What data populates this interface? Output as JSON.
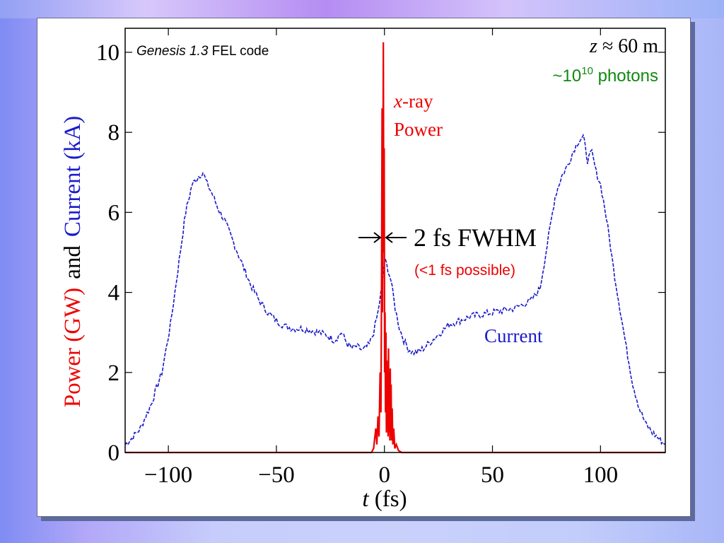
{
  "chart_data": {
    "type": "line",
    "title": "",
    "code_label_italic": "Genesis 1.3",
    "code_label_rest": " FEL code",
    "z_label_var": "z",
    "z_label_rest": " ≈ 60 m",
    "photons_prefix": "~10",
    "photons_exp": "10",
    "photons_suffix": " photons",
    "ylabel_power": "Power (GW)",
    "ylabel_and": "and",
    "ylabel_current": "Current (kA)",
    "xlabel_var": "t",
    "xlabel_unit": " (fs)",
    "xlim": [
      -120,
      130
    ],
    "ylim": [
      0,
      10.6
    ],
    "x_ticks": [
      -100,
      -50,
      0,
      50,
      100
    ],
    "x_tick_labels": [
      "−100",
      "−50",
      "0",
      "50",
      "100"
    ],
    "y_ticks": [
      0,
      2,
      4,
      6,
      8,
      10
    ],
    "y_tick_labels": [
      "0",
      "2",
      "4",
      "6",
      "8",
      "10"
    ],
    "grid": false,
    "series": [
      {
        "name": "Current",
        "color": "#1a1acc",
        "style": "dashed",
        "x": [
          -120,
          -117,
          -113,
          -108,
          -103,
          -99,
          -95,
          -92,
          -89,
          -86,
          -84,
          -82,
          -80,
          -77,
          -74,
          -71,
          -68,
          -65,
          -62,
          -58,
          -54,
          -50,
          -46,
          -42,
          -38,
          -34,
          -30,
          -26,
          -23,
          -20,
          -17,
          -15,
          -13,
          -10,
          -7,
          -5,
          -3,
          -1,
          0,
          1,
          3,
          5,
          7,
          9,
          11,
          13,
          15,
          18,
          22,
          26,
          30,
          35,
          40,
          45,
          50,
          55,
          60,
          64,
          68,
          72,
          76,
          79,
          82,
          85,
          88,
          90,
          92,
          93,
          94,
          96,
          98,
          100,
          102,
          104,
          106,
          109,
          112,
          115,
          118,
          121,
          124,
          127,
          130
        ],
        "values": [
          0.2,
          0.35,
          0.6,
          1.2,
          2.0,
          3.2,
          4.8,
          6.0,
          6.7,
          6.9,
          7.0,
          6.7,
          6.5,
          6.1,
          5.8,
          5.4,
          5.0,
          4.6,
          4.2,
          3.8,
          3.5,
          3.3,
          3.15,
          3.1,
          3.1,
          3.05,
          3.0,
          2.9,
          2.8,
          3.0,
          2.7,
          2.6,
          2.65,
          2.55,
          2.7,
          3.0,
          3.5,
          4.2,
          4.8,
          4.7,
          4.3,
          3.6,
          3.1,
          2.8,
          2.6,
          2.5,
          2.5,
          2.6,
          2.8,
          3.0,
          3.2,
          3.3,
          3.4,
          3.45,
          3.5,
          3.55,
          3.6,
          3.7,
          3.8,
          4.1,
          5.4,
          6.4,
          6.9,
          7.2,
          7.6,
          7.8,
          7.9,
          7.6,
          7.3,
          7.5,
          7.0,
          6.7,
          6.1,
          5.4,
          4.6,
          3.6,
          2.6,
          1.7,
          1.1,
          0.7,
          0.5,
          0.35,
          0.2
        ]
      },
      {
        "name": "x-ray Power",
        "color": "#ee0000",
        "style": "solid",
        "x": [
          -120,
          -6,
          -5,
          -4,
          -3.5,
          -3,
          -2.5,
          -2,
          -1.6,
          -1.3,
          -1.1,
          -0.9,
          -0.7,
          -0.5,
          -0.3,
          -0.1,
          0.1,
          0.3,
          0.5,
          0.7,
          0.9,
          1.1,
          1.3,
          1.5,
          1.7,
          1.9,
          2.1,
          2.3,
          2.5,
          2.7,
          2.9,
          3.1,
          3.3,
          3.6,
          3.9,
          4.3,
          4.8,
          5.5,
          6.5,
          8,
          130
        ],
        "values": [
          0,
          0,
          0.1,
          0.6,
          0.2,
          0.9,
          0.4,
          2.0,
          1.0,
          4.5,
          8.6,
          3.5,
          6.9,
          10.25,
          5.0,
          7.6,
          2.0,
          3.5,
          1.0,
          3.0,
          0.5,
          2.3,
          0.6,
          2.1,
          0.4,
          2.6,
          0.5,
          2.0,
          0.3,
          2.1,
          0.4,
          1.7,
          0.3,
          1.1,
          0.2,
          0.6,
          0.1,
          0.2,
          0.05,
          0,
          0
        ]
      }
    ],
    "annotations": {
      "xray_line1_var": "x",
      "xray_line1_rest": "-ray",
      "xray_line2": "Power",
      "fwhm": "2 fs FWHM",
      "fwhm_note": "(<1 fs possible)",
      "current_label": "Current"
    }
  }
}
